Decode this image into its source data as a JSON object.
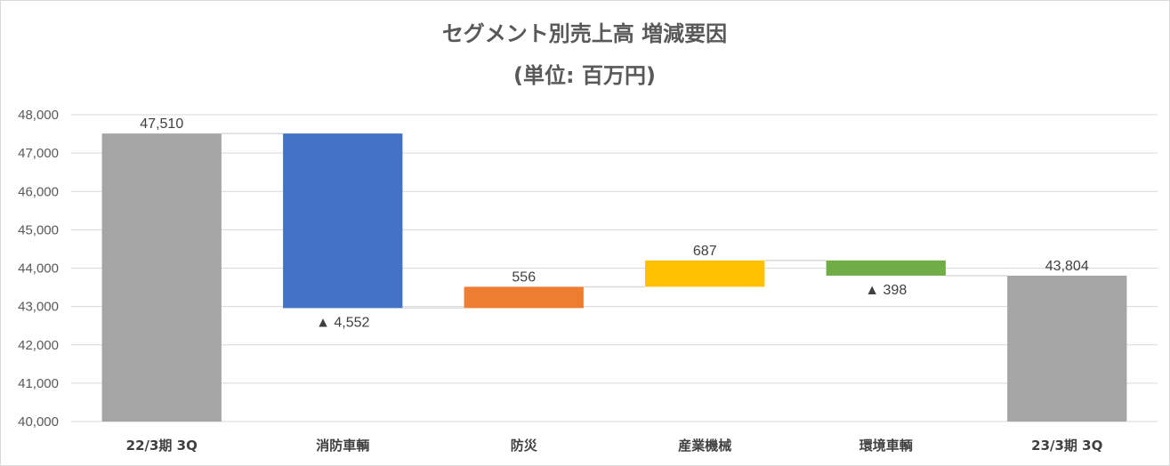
{
  "chart_data": {
    "type": "bar",
    "subtype": "waterfall",
    "title": "セグメント別売上高 増減要因",
    "subtitle": "(単位: 百万円)",
    "ylim": [
      40000,
      48000
    ],
    "y_ticks": [
      "40,000",
      "41,000",
      "42,000",
      "43,000",
      "44,000",
      "45,000",
      "46,000",
      "47,000",
      "48,000"
    ],
    "grid": true,
    "categories": [
      "22/3期 3Q",
      "消防車輌",
      "防災",
      "産業機械",
      "環境車輌",
      "23/3期 3Q"
    ],
    "bars": [
      {
        "category": "22/3期 3Q",
        "kind": "total",
        "start": 40000,
        "end": 47510,
        "label": "47,510",
        "label_pos": "above",
        "color": "#a5a5a5"
      },
      {
        "category": "消防車輌",
        "kind": "decrease",
        "start": 47510,
        "end": 42958,
        "label": "▲ 4,552",
        "label_pos": "below",
        "color": "#4472c4"
      },
      {
        "category": "防災",
        "kind": "increase",
        "start": 42958,
        "end": 43514,
        "label": "556",
        "label_pos": "above",
        "color": "#ed7d31"
      },
      {
        "category": "産業機械",
        "kind": "increase",
        "start": 43514,
        "end": 44201,
        "label": "687",
        "label_pos": "above",
        "color": "#ffc000"
      },
      {
        "category": "環境車輌",
        "kind": "decrease",
        "start": 44201,
        "end": 43804,
        "label": "▲ 398",
        "label_pos": "below",
        "color": "#70ad47"
      },
      {
        "category": "23/3期 3Q",
        "kind": "total",
        "start": 40000,
        "end": 43804,
        "label": "43,804",
        "label_pos": "above",
        "color": "#a5a5a5"
      }
    ]
  }
}
